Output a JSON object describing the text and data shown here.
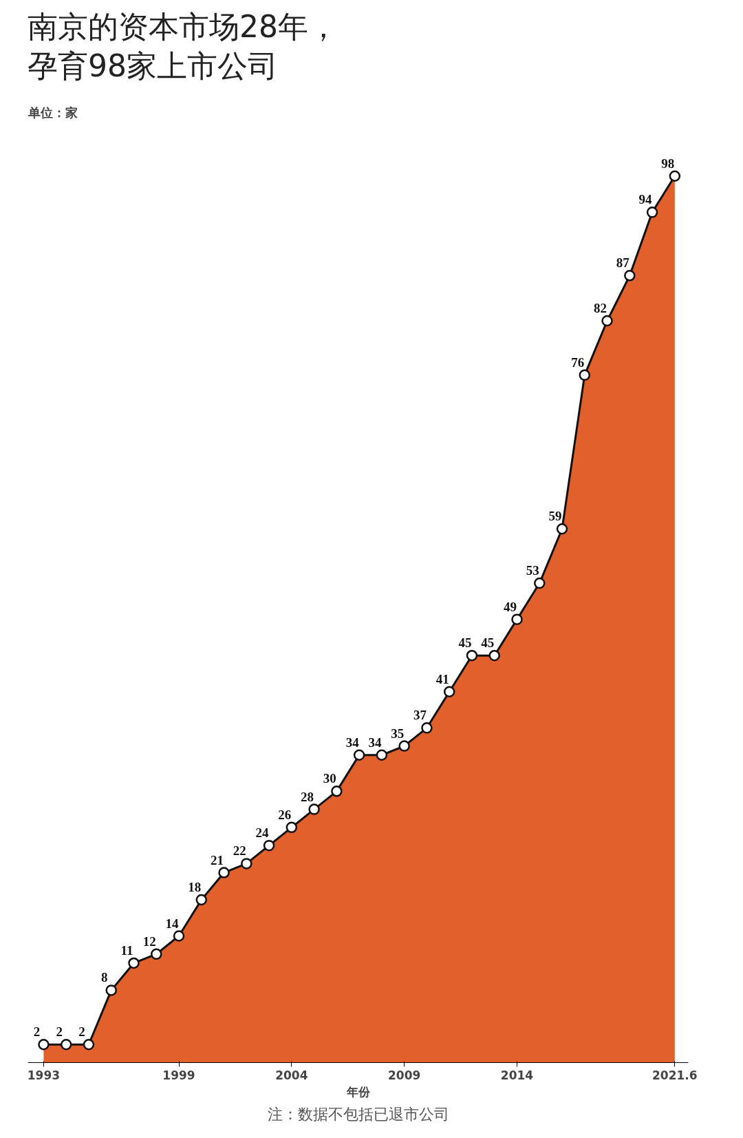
{
  "chart_data": {
    "type": "area",
    "title": "南京的资本市场28年，孕育98家上市公司",
    "xlabel": "年份",
    "annotations": [
      "单位：家",
      "注：数据不包括已退市公司"
    ],
    "categories": [
      "1993",
      null,
      null,
      null,
      null,
      null,
      "1999",
      null,
      null,
      null,
      null,
      "2004",
      null,
      null,
      null,
      null,
      "2009",
      null,
      null,
      null,
      null,
      "2014",
      null,
      null,
      null,
      null,
      null,
      null,
      "2021.6"
    ],
    "series": [
      {
        "color": "#e2602b",
        "values": [
          2,
          2,
          2,
          8,
          11,
          12,
          14,
          18,
          21,
          22,
          24,
          26,
          28,
          30,
          34,
          34,
          35,
          37,
          41,
          45,
          45,
          49,
          53,
          59,
          76,
          82,
          87,
          94,
          98
        ]
      }
    ],
    "tick_labels": "x",
    "grid": false,
    "marker": "circle",
    "line_style": "solid",
    "data_labels": true
  }
}
